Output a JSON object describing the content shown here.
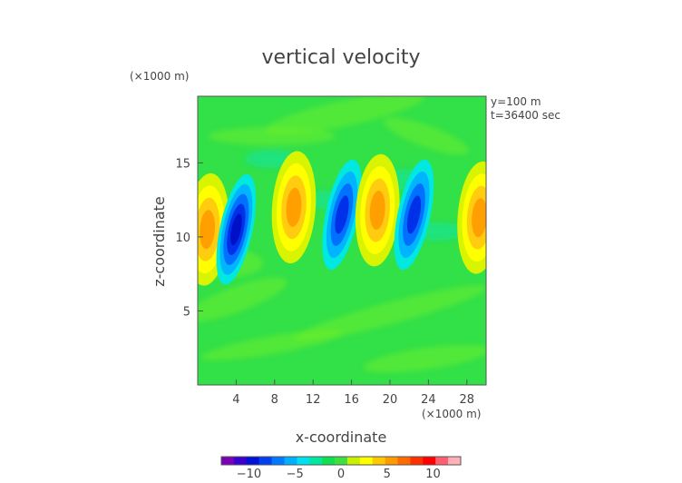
{
  "chart_data": {
    "type": "heatmap",
    "title": "vertical velocity",
    "xlabel": "x-coordinate",
    "ylabel": "z-coordinate",
    "x_unit": "(×1000 m)",
    "y_unit": "(×1000 m)",
    "annotations": [
      "y=100 m",
      "t=36400 sec"
    ],
    "xlim": [
      0,
      30
    ],
    "ylim": [
      0,
      19.5
    ],
    "x_ticks": [
      4,
      8,
      12,
      16,
      20,
      24,
      28
    ],
    "x_tick_labels": [
      "4",
      "8",
      "12",
      "16",
      "20",
      "24",
      "28"
    ],
    "y_ticks": [
      5,
      10,
      15
    ],
    "y_tick_labels": [
      "5",
      "10",
      "15"
    ],
    "colorbar": {
      "range": [
        -13,
        13
      ],
      "ticks": [
        -10,
        -5,
        0,
        5,
        10
      ],
      "tick_labels": [
        "−10",
        "−5",
        "0",
        "5",
        "10"
      ],
      "colors": [
        "#7a00b8",
        "#3a00d0",
        "#0010d8",
        "#0040f0",
        "#0078ff",
        "#00b0ff",
        "#00e0f0",
        "#00e8a0",
        "#10e050",
        "#3ce040",
        "#c8f000",
        "#ffff00",
        "#ffc800",
        "#ff9a00",
        "#ff6a00",
        "#ff3000",
        "#ff0000",
        "#ff6070",
        "#ffb0b8"
      ]
    },
    "features": [
      {
        "sign": "+",
        "x": 1.0,
        "z": 10.5,
        "peak": 5
      },
      {
        "sign": "-",
        "x": 4.0,
        "z": 10.5,
        "peak": -11
      },
      {
        "sign": "+",
        "x": 10.0,
        "z": 12.0,
        "peak": 6
      },
      {
        "sign": "-",
        "x": 15.0,
        "z": 11.5,
        "peak": -8
      },
      {
        "sign": "+",
        "x": 18.7,
        "z": 11.8,
        "peak": 6
      },
      {
        "sign": "-",
        "x": 22.5,
        "z": 11.5,
        "peak": -9
      },
      {
        "sign": "+",
        "x": 29.3,
        "z": 11.3,
        "peak": 5
      }
    ]
  }
}
